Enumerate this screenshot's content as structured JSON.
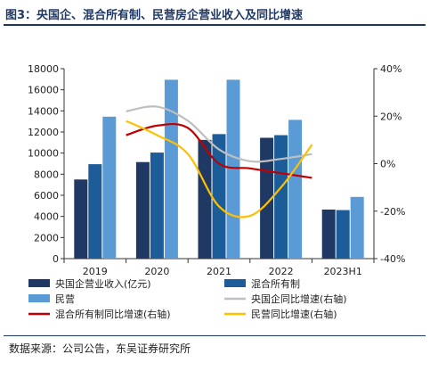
{
  "figure_title": "图3：央国企、混合所有制、民营房企营业收入及同比增速",
  "source": "数据来源：公司公告，东吴证券研究所",
  "colors": {
    "soe_revenue": "#1f3864",
    "mixed_revenue": "#1b5c99",
    "private_revenue": "#5b9bd5",
    "soe_growth": "#bfbfbf",
    "mixed_growth": "#c00000",
    "private_growth": "#ffc000",
    "title": "#1f3864"
  },
  "chart_data": {
    "type": "bar",
    "categories": [
      "2019",
      "2020",
      "2021",
      "2022",
      "2023H1"
    ],
    "y_left": {
      "min": 0,
      "max": 18000,
      "ticks": [
        "0",
        "2000",
        "4000",
        "6000",
        "8000",
        "10000",
        "12000",
        "14000",
        "16000",
        "18000"
      ]
    },
    "y_right": {
      "min": -40,
      "max": 40,
      "ticks": [
        "-40%",
        "-20%",
        "0%",
        "20%",
        "40%"
      ]
    },
    "series": [
      {
        "name": "央国企营业收入(亿元)",
        "type": "bar",
        "axis": "left",
        "color": "#1f3864",
        "values": [
          7500,
          9150,
          11250,
          11450,
          4650
        ]
      },
      {
        "name": "混合所有制",
        "type": "bar",
        "axis": "left",
        "color": "#1b5c99",
        "values": [
          8950,
          10050,
          11800,
          11700,
          4600
        ]
      },
      {
        "name": "民营",
        "type": "bar",
        "axis": "left",
        "color": "#5b9bd5",
        "values": [
          13450,
          16950,
          16950,
          13150,
          5850
        ]
      },
      {
        "name": "央国企同比增速(右轴)",
        "type": "line",
        "axis": "right",
        "color": "#bfbfbf",
        "x": [
          1,
          1.5,
          2,
          2.5,
          3,
          3.5,
          4
        ],
        "values": [
          22,
          24,
          18,
          6,
          1,
          2,
          4
        ]
      },
      {
        "name": "混合所有制同比增速(右轴)",
        "type": "line",
        "axis": "right",
        "color": "#c00000",
        "x": [
          1,
          1.5,
          2,
          2.5,
          3,
          3.5,
          4
        ],
        "values": [
          12,
          16,
          15,
          0,
          -2,
          -4,
          -6
        ]
      },
      {
        "name": "民营同比增速(右轴)",
        "type": "line",
        "axis": "right",
        "color": "#ffc000",
        "x": [
          1,
          1.5,
          2,
          2.5,
          3,
          3.5,
          4
        ],
        "values": [
          18,
          12,
          4,
          -18,
          -22,
          -10,
          8
        ]
      }
    ],
    "legend_position": "bottom",
    "grid": false
  }
}
